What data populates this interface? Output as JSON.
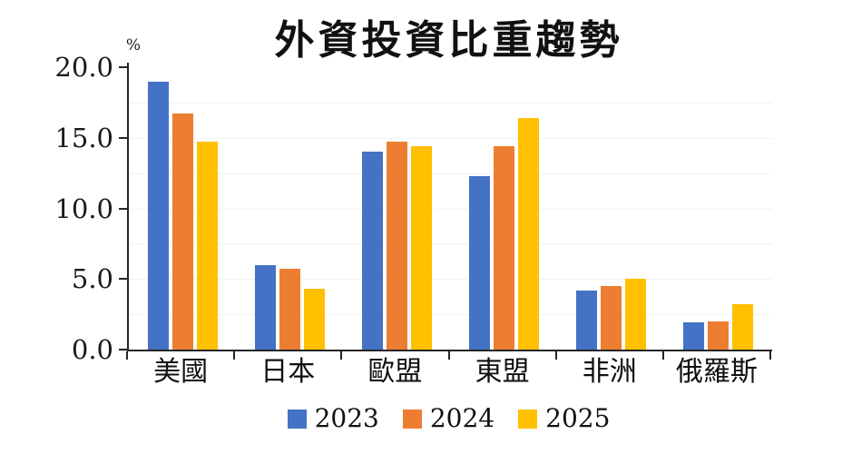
{
  "title": "外資投資比重趨勢",
  "colors": {
    "series_2023": "#4472C4",
    "series_2024": "#ED7D31",
    "series_2025": "#FFC000",
    "axis": "#262626",
    "text": "#1a1a1a",
    "background": "#ffffff",
    "gridline": "#f2f2f2"
  },
  "chart_data": {
    "type": "bar",
    "title": "外資投資比重趨勢",
    "xlabel": "",
    "ylabel": "%",
    "ylim": [
      0,
      20
    ],
    "y_ticks": [
      20.0,
      15.0,
      10.0,
      5.0,
      0.0
    ],
    "y_tick_labels": [
      "20.0",
      "15.0",
      "10.0",
      "5.0",
      "0.0"
    ],
    "categories": [
      "美國",
      "日本",
      "歐盟",
      "東盟",
      "非洲",
      "俄羅斯"
    ],
    "series": [
      {
        "name": "2023",
        "color": "#4472C4",
        "values": [
          19.0,
          6.0,
          14.0,
          12.3,
          4.2,
          1.9
        ]
      },
      {
        "name": "2024",
        "color": "#ED7D31",
        "values": [
          16.7,
          5.7,
          14.7,
          14.4,
          4.5,
          2.0
        ]
      },
      {
        "name": "2025",
        "color": "#FFC000",
        "values": [
          14.7,
          4.3,
          14.4,
          16.4,
          5.0,
          3.2
        ]
      }
    ],
    "grid": "faint-horizontal-minor",
    "legend_position": "bottom"
  }
}
